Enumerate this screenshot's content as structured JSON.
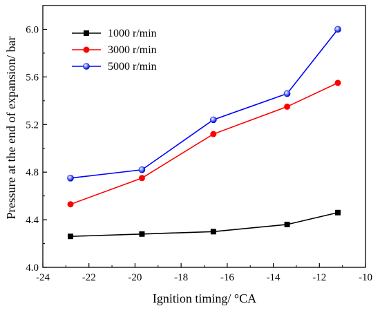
{
  "chart_data": {
    "type": "line",
    "title": "",
    "xlabel": "Ignition timing/ °CA",
    "ylabel": "Pressure at the end of expansion/ bar",
    "xlim": [
      -24,
      -10
    ],
    "ylim": [
      4.0,
      6.2
    ],
    "xticks": [
      -24,
      -22,
      -20,
      -18,
      -16,
      -14,
      -12,
      -10
    ],
    "xtick_labels": [
      "-24",
      "-22",
      "-20",
      "-18",
      "-16",
      "-14",
      "-12",
      "-10"
    ],
    "yticks": [
      4.0,
      4.4,
      4.8,
      5.2,
      5.6,
      6.0
    ],
    "ytick_labels": [
      "4.0",
      "4.4",
      "4.8",
      "5.2",
      "5.6",
      "6.0"
    ],
    "grid": false,
    "legend_position": "top-left",
    "x": [
      -22.8,
      -19.7,
      -16.6,
      -13.4,
      -11.2
    ],
    "series": [
      {
        "name": "1000 r/min",
        "color": "#000000",
        "marker": "square",
        "values": [
          4.26,
          4.28,
          4.3,
          4.36,
          4.46
        ]
      },
      {
        "name": "3000 r/min",
        "color": "#ff0000",
        "marker": "circle",
        "values": [
          4.53,
          4.75,
          5.12,
          5.35,
          5.55
        ]
      },
      {
        "name": "5000 r/min",
        "color": "#0000ff",
        "marker": "sphere",
        "values": [
          4.75,
          4.82,
          5.24,
          5.46,
          6.0
        ]
      }
    ]
  }
}
